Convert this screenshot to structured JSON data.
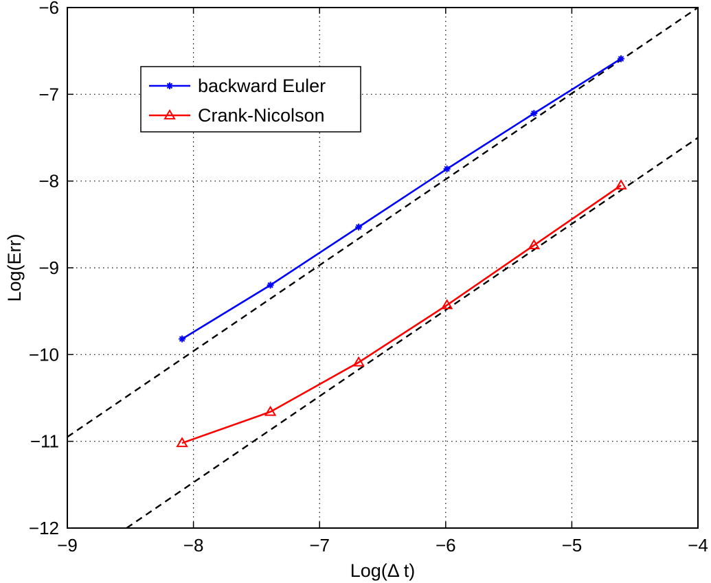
{
  "chart_data": {
    "type": "line",
    "xlabel": "Log(Δ t)",
    "ylabel": "Log(Err)",
    "xlim": [
      -9,
      -4
    ],
    "ylim": [
      -12,
      -6
    ],
    "xticks": [
      -9,
      -8,
      -7,
      -6,
      -5,
      -4
    ],
    "yticks": [
      -12,
      -11,
      -10,
      -9,
      -8,
      -7,
      -6
    ],
    "xtick_labels": [
      "−9",
      "−8",
      "−7",
      "−6",
      "−5",
      "−4"
    ],
    "ytick_labels": [
      "−12",
      "−11",
      "−10",
      "−9",
      "−8",
      "−7",
      "−6"
    ],
    "grid": true,
    "legend_position": "top-left",
    "series": [
      {
        "name": "backward Euler",
        "color": "#0000ff",
        "marker": "asterisk",
        "x": [
          -8.09,
          -7.39,
          -6.69,
          -5.99,
          -5.3,
          -4.61
        ],
        "y": [
          -9.82,
          -9.2,
          -8.53,
          -7.86,
          -7.22,
          -6.59
        ]
      },
      {
        "name": "Crank-Nicolson",
        "color": "#ff0000",
        "marker": "triangle",
        "x": [
          -8.09,
          -7.39,
          -6.69,
          -5.99,
          -5.3,
          -4.61
        ],
        "y": [
          -11.02,
          -10.66,
          -10.09,
          -9.43,
          -8.74,
          -8.05
        ]
      }
    ],
    "reference_lines": [
      {
        "style": "dashed",
        "color": "#000000",
        "x": [
          -9,
          -4
        ],
        "y": [
          -10.95,
          -6.0
        ]
      },
      {
        "style": "dashed",
        "color": "#000000",
        "x": [
          -8.53,
          -4
        ],
        "y": [
          -12.0,
          -7.5
        ]
      }
    ]
  }
}
